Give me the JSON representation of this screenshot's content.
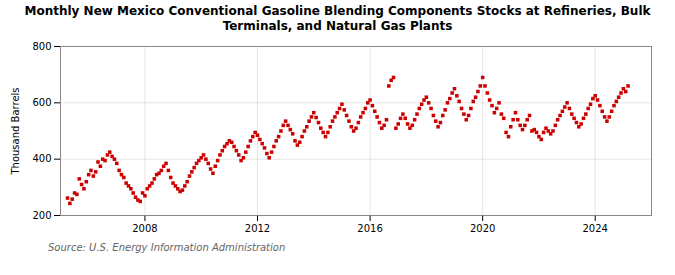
{
  "chart_data": {
    "type": "scatter",
    "title": "Monthly New Mexico Conventional Gasoline Blending Components Stocks at Refineries, Bulk\nTerminals, and Natural Gas Plants",
    "ylabel": "Thousand Barrels",
    "caption": "Source: U.S. Energy Information Administration",
    "color": "#cc0000",
    "marker": "square",
    "grid": true,
    "xlim": [
      2005,
      2026
    ],
    "xticks": [
      2008,
      2012,
      2016,
      2020,
      2024
    ],
    "ylim": [
      200,
      800
    ],
    "yticks": [
      200,
      400,
      600,
      800
    ],
    "x": [
      2005.25,
      2005.333333,
      2005.416667,
      2005.5,
      2005.583333,
      2005.666667,
      2005.75,
      2005.833333,
      2005.916667,
      2006,
      2006.083333,
      2006.166667,
      2006.25,
      2006.333333,
      2006.416667,
      2006.5,
      2006.583333,
      2006.666667,
      2006.75,
      2006.833333,
      2006.916667,
      2007,
      2007.083333,
      2007.166667,
      2007.25,
      2007.333333,
      2007.416667,
      2007.5,
      2007.583333,
      2007.666667,
      2007.75,
      2007.833333,
      2007.916667,
      2008,
      2008.083333,
      2008.166667,
      2008.25,
      2008.333333,
      2008.416667,
      2008.5,
      2008.583333,
      2008.666667,
      2008.75,
      2008.833333,
      2008.916667,
      2009,
      2009.083333,
      2009.166667,
      2009.25,
      2009.333333,
      2009.416667,
      2009.5,
      2009.583333,
      2009.666667,
      2009.75,
      2009.833333,
      2009.916667,
      2010,
      2010.083333,
      2010.166667,
      2010.25,
      2010.333333,
      2010.416667,
      2010.5,
      2010.583333,
      2010.666667,
      2010.75,
      2010.833333,
      2010.916667,
      2011,
      2011.083333,
      2011.166667,
      2011.25,
      2011.333333,
      2011.416667,
      2011.5,
      2011.583333,
      2011.666667,
      2011.75,
      2011.833333,
      2011.916667,
      2012,
      2012.083333,
      2012.166667,
      2012.25,
      2012.333333,
      2012.416667,
      2012.5,
      2012.583333,
      2012.666667,
      2012.75,
      2012.833333,
      2012.916667,
      2013,
      2013.083333,
      2013.166667,
      2013.25,
      2013.333333,
      2013.416667,
      2013.5,
      2013.583333,
      2013.666667,
      2013.75,
      2013.833333,
      2013.916667,
      2014,
      2014.083333,
      2014.166667,
      2014.25,
      2014.333333,
      2014.416667,
      2014.5,
      2014.583333,
      2014.666667,
      2014.75,
      2014.833333,
      2014.916667,
      2015,
      2015.083333,
      2015.166667,
      2015.25,
      2015.333333,
      2015.416667,
      2015.5,
      2015.583333,
      2015.666667,
      2015.75,
      2015.833333,
      2015.916667,
      2016,
      2016.083333,
      2016.166667,
      2016.25,
      2016.333333,
      2016.416667,
      2016.5,
      2016.583333,
      2016.666667,
      2016.75,
      2016.833333,
      2016.916667,
      2017,
      2017.083333,
      2017.166667,
      2017.25,
      2017.333333,
      2017.416667,
      2017.5,
      2017.583333,
      2017.666667,
      2017.75,
      2017.833333,
      2017.916667,
      2018,
      2018.083333,
      2018.166667,
      2018.25,
      2018.333333,
      2018.416667,
      2018.5,
      2018.583333,
      2018.666667,
      2018.75,
      2018.833333,
      2018.916667,
      2019,
      2019.083333,
      2019.166667,
      2019.25,
      2019.333333,
      2019.416667,
      2019.5,
      2019.583333,
      2019.666667,
      2019.75,
      2019.833333,
      2019.916667,
      2020,
      2020.083333,
      2020.166667,
      2020.25,
      2020.333333,
      2020.416667,
      2020.5,
      2020.583333,
      2020.666667,
      2020.75,
      2020.833333,
      2020.916667,
      2021,
      2021.083333,
      2021.166667,
      2021.25,
      2021.333333,
      2021.416667,
      2021.5,
      2021.583333,
      2021.666667,
      2021.75,
      2021.833333,
      2021.916667,
      2022,
      2022.083333,
      2022.166667,
      2022.25,
      2022.333333,
      2022.416667,
      2022.5,
      2022.583333,
      2022.666667,
      2022.75,
      2022.833333,
      2022.916667,
      2023,
      2023.083333,
      2023.166667,
      2023.25,
      2023.333333,
      2023.416667,
      2023.5,
      2023.583333,
      2023.666667,
      2023.75,
      2023.833333,
      2023.916667,
      2024,
      2024.083333,
      2024.166667,
      2024.25,
      2024.333333,
      2024.416667,
      2024.5,
      2024.583333,
      2024.666667,
      2024.75,
      2024.833333,
      2024.916667,
      2025,
      2025.083333,
      2025.166667
    ],
    "values": [
      262,
      243,
      258,
      280,
      275,
      330,
      310,
      295,
      320,
      345,
      360,
      340,
      355,
      390,
      375,
      400,
      395,
      415,
      425,
      410,
      400,
      385,
      360,
      345,
      335,
      315,
      305,
      295,
      280,
      265,
      255,
      250,
      280,
      270,
      295,
      305,
      315,
      330,
      345,
      350,
      360,
      375,
      385,
      360,
      335,
      315,
      305,
      295,
      285,
      290,
      305,
      320,
      340,
      355,
      370,
      385,
      395,
      405,
      415,
      400,
      385,
      365,
      350,
      375,
      395,
      415,
      430,
      445,
      455,
      465,
      460,
      445,
      430,
      415,
      395,
      405,
      425,
      445,
      465,
      480,
      495,
      485,
      470,
      455,
      440,
      420,
      405,
      425,
      445,
      465,
      480,
      500,
      520,
      535,
      520,
      505,
      490,
      465,
      450,
      460,
      480,
      500,
      515,
      535,
      550,
      565,
      548,
      530,
      510,
      495,
      480,
      495,
      515,
      535,
      550,
      565,
      580,
      595,
      575,
      555,
      535,
      515,
      500,
      510,
      530,
      550,
      565,
      580,
      600,
      610,
      590,
      570,
      550,
      530,
      510,
      520,
      540,
      660,
      680,
      690,
      510,
      525,
      545,
      560,
      545,
      525,
      510,
      520,
      540,
      560,
      580,
      595,
      610,
      620,
      600,
      580,
      555,
      535,
      515,
      530,
      555,
      575,
      600,
      615,
      635,
      650,
      625,
      605,
      580,
      560,
      540,
      555,
      580,
      605,
      620,
      640,
      660,
      690,
      660,
      635,
      610,
      590,
      565,
      580,
      600,
      560,
      545,
      495,
      480,
      515,
      540,
      565,
      540,
      520,
      505,
      520,
      540,
      555,
      500,
      505,
      495,
      480,
      470,
      495,
      510,
      500,
      490,
      500,
      520,
      540,
      555,
      570,
      585,
      600,
      580,
      560,
      545,
      530,
      515,
      525,
      545,
      560,
      580,
      595,
      615,
      625,
      610,
      590,
      570,
      550,
      535,
      550,
      570,
      590,
      605,
      620,
      635,
      650,
      640,
      660
    ]
  }
}
